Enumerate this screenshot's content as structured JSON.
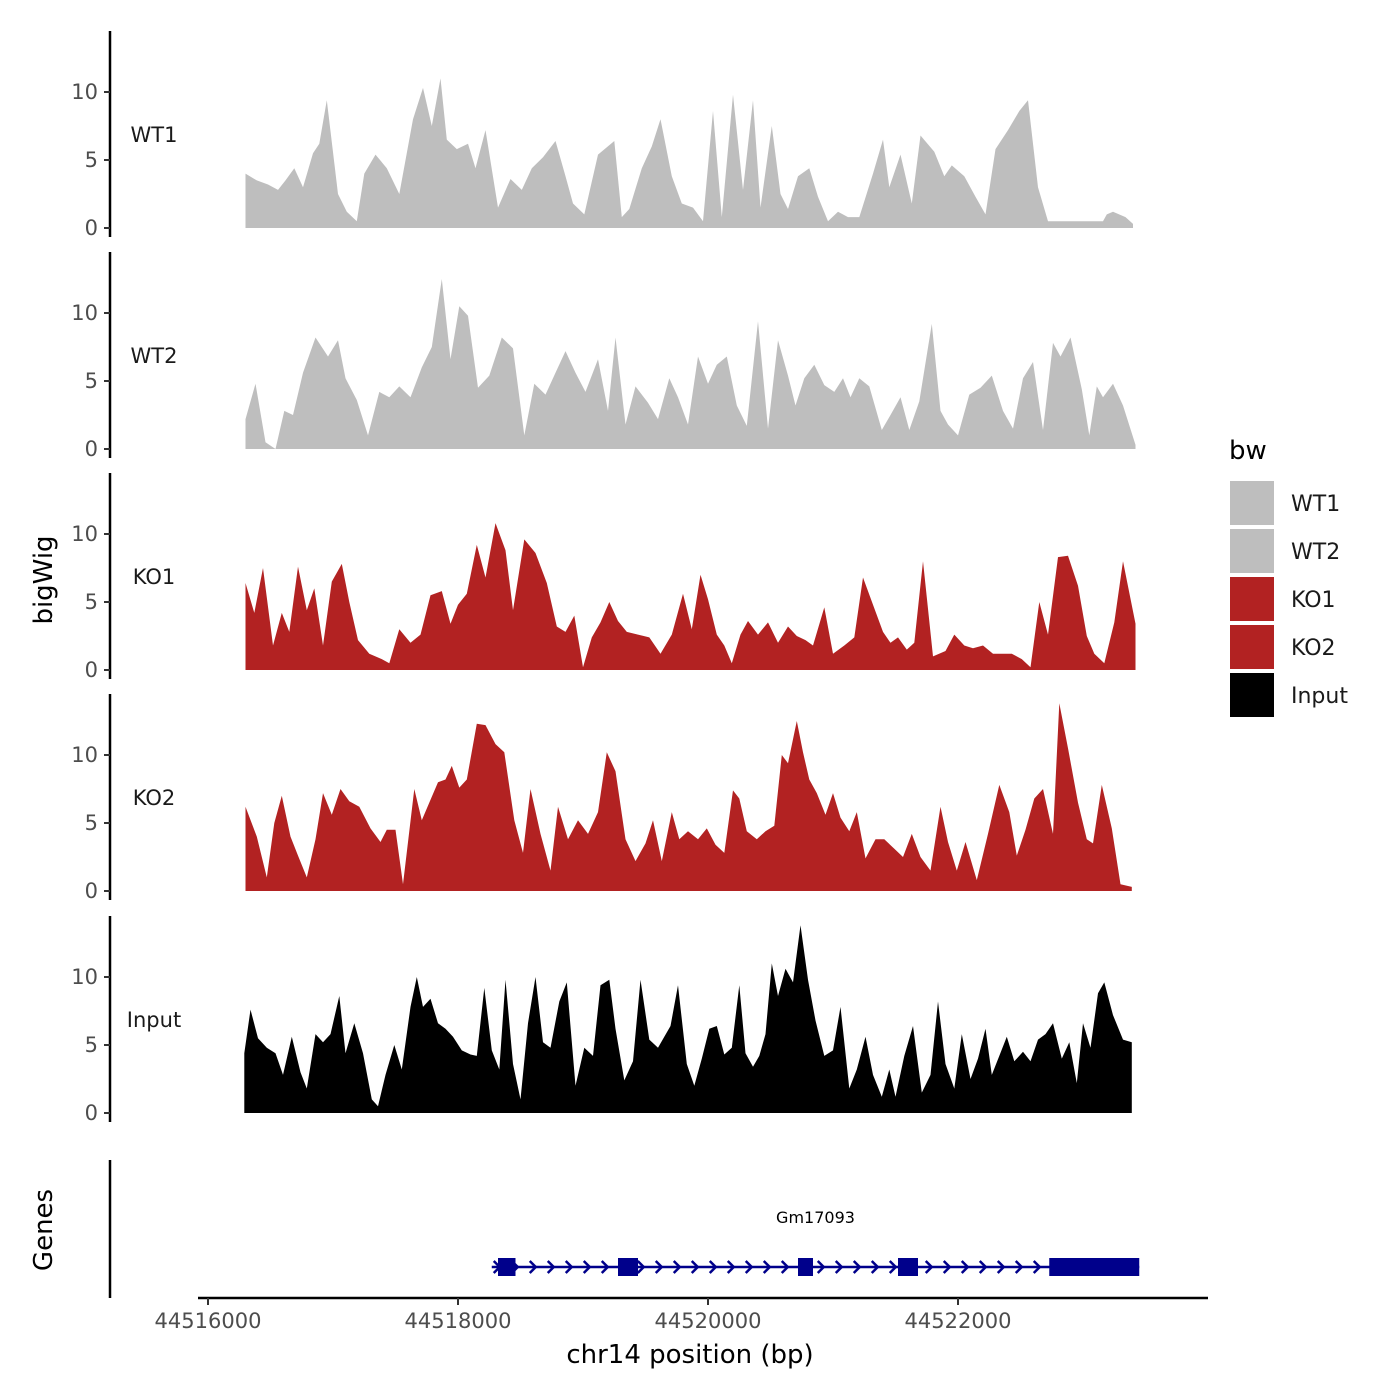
{
  "chart_data": {
    "type": "area",
    "chromosome": "chr14",
    "xlabel": "chr14 position (bp)",
    "ylabel": "bigWig",
    "genes_label": "Genes",
    "xlim": [
      44515920,
      44524000
    ],
    "x_ticks": [
      44516000,
      44518000,
      44520000,
      44522000
    ],
    "x_tick_labels": [
      "44516000",
      "44518000",
      "44520000",
      "44522000"
    ],
    "ylim": [
      0,
      14
    ],
    "y_ticks": [
      0,
      5,
      10
    ],
    "y_tick_labels": [
      "0",
      "5",
      "10"
    ],
    "legend": {
      "title": "bw",
      "entries": [
        {
          "label": "WT1",
          "color": "#bebebe"
        },
        {
          "label": "WT2",
          "color": "#bebebe"
        },
        {
          "label": "KO1",
          "color": "#b22222"
        },
        {
          "label": "KO2",
          "color": "#b22222"
        },
        {
          "label": "Input",
          "color": "#000000"
        }
      ]
    },
    "series": [
      {
        "name": "WT1",
        "color": "#bebebe",
        "x": [
          44516300,
          44516390,
          44516480,
          44516560,
          44516620,
          44516690,
          44516760,
          44516840,
          44516890,
          44516950,
          44517040,
          44517110,
          44517190,
          44517250,
          44517340,
          44517430,
          44517530,
          44517640,
          44517720,
          44517790,
          44517860,
          44517910,
          44517990,
          44518080,
          44518140,
          44518220,
          44518320,
          44518420,
          44518510,
          44518590,
          44518680,
          44518780,
          44518860,
          44518920,
          44519010,
          44519120,
          44519250,
          44519310,
          44519370,
          44519470,
          44519550,
          44519620,
          44519710,
          44519790,
          44519880,
          44519960,
          44520040,
          44520110,
          44520200,
          44520280,
          44520360,
          44520420,
          44520510,
          44520580,
          44520640,
          44520720,
          44520810,
          44520880,
          44520960,
          44521040,
          44521120,
          44521210,
          44521320,
          44521400,
          44521450,
          44521540,
          44521630,
          44521700,
          44521810,
          44521890,
          44521950,
          44522050,
          44522140,
          44522220,
          44522300,
          44522400,
          44522490,
          44522560,
          44522640,
          44522720,
          44522810,
          44522890,
          44522970,
          44523050,
          44523110,
          44523160,
          44523190,
          44523240,
          44523340,
          44523400
        ],
        "values": [
          4,
          3.5,
          3.2,
          2.8,
          3.5,
          4.4,
          3,
          5.5,
          6.2,
          9.4,
          2.5,
          1.2,
          0.5,
          4,
          5.4,
          4.4,
          2.5,
          8,
          10.3,
          7.5,
          11,
          6.5,
          5.8,
          6.2,
          4.4,
          7.2,
          1.5,
          3.6,
          2.8,
          4.4,
          5.2,
          6.4,
          3.8,
          1.8,
          1,
          5.4,
          6.4,
          0.8,
          1.4,
          4.4,
          6,
          8,
          3.8,
          1.8,
          1.5,
          0.5,
          8.6,
          0.8,
          9.8,
          2.8,
          9.4,
          1.5,
          7.5,
          2.5,
          1.4,
          3.8,
          4.4,
          2.3,
          0.5,
          1.2,
          0.8,
          0.8,
          4,
          6.5,
          3,
          5.4,
          1.8,
          6.8,
          5.6,
          3.8,
          4.6,
          3.8,
          2.3,
          1,
          5.8,
          7.2,
          8.6,
          9.4,
          3,
          0.5,
          0.5,
          0.5,
          0.5,
          0.5,
          0.5,
          0.5,
          1,
          1.2,
          0.8,
          0.3
        ]
      },
      {
        "name": "WT2",
        "color": "#bebebe",
        "x": [
          44516300,
          44516380,
          44516460,
          44516540,
          44516610,
          44516680,
          44516760,
          44516860,
          44516960,
          44517040,
          44517100,
          44517190,
          44517280,
          44517370,
          44517450,
          44517530,
          44517620,
          44517710,
          44517790,
          44517870,
          44517940,
          44518010,
          44518080,
          44518160,
          44518250,
          44518350,
          44518440,
          44518530,
          44518610,
          44518700,
          44518780,
          44518860,
          44518940,
          44519020,
          44519120,
          44519200,
          44519260,
          44519340,
          44519420,
          44519520,
          44519600,
          44519690,
          44519760,
          44519840,
          44519920,
          44520000,
          44520070,
          44520150,
          44520230,
          44520310,
          44520400,
          44520480,
          44520560,
          44520640,
          44520700,
          44520770,
          44520850,
          44520930,
          44521010,
          44521080,
          44521140,
          44521210,
          44521290,
          44521390,
          44521460,
          44521540,
          44521610,
          44521690,
          44521790,
          44521860,
          44521920,
          44522000,
          44522090,
          44522180,
          44522270,
          44522360,
          44522440,
          44522520,
          44522600,
          44522680,
          44522760,
          44522820,
          44522900,
          44522990,
          44523050,
          44523110,
          44523160,
          44523240,
          44523320,
          44523420
        ],
        "values": [
          2.2,
          4.8,
          0.5,
          0,
          2.8,
          2.5,
          5.6,
          8.2,
          6.8,
          8,
          5.2,
          3.6,
          1,
          4.2,
          3.8,
          4.6,
          3.8,
          6,
          7.5,
          12.5,
          6.6,
          10.5,
          9.8,
          4.5,
          5.4,
          8.2,
          7.4,
          1,
          4.8,
          4,
          5.6,
          7.2,
          5.6,
          4.2,
          6.6,
          2.8,
          8.2,
          1.8,
          4.6,
          3.4,
          2.2,
          5.2,
          3.8,
          1.8,
          6.8,
          4.8,
          6.2,
          6.8,
          3.2,
          1.7,
          9.4,
          1.5,
          8,
          5.4,
          3.2,
          5.2,
          6.2,
          4.7,
          4.2,
          5.2,
          3.8,
          5.2,
          4.6,
          1.4,
          2.5,
          3.8,
          1.4,
          3.5,
          9.2,
          2.8,
          1.8,
          1,
          4,
          4.5,
          5.4,
          2.8,
          1.5,
          5.2,
          6.4,
          1.4,
          7.8,
          6.8,
          8.2,
          4.4,
          1,
          4.6,
          3.8,
          4.8,
          3.2,
          0.3
        ]
      },
      {
        "name": "KO1",
        "color": "#b22222",
        "x": [
          44516300,
          44516370,
          44516440,
          44516520,
          44516590,
          44516650,
          44516720,
          44516790,
          44516850,
          44516920,
          44516990,
          44517070,
          44517130,
          44517200,
          44517290,
          44517390,
          44517450,
          44517530,
          44517620,
          44517700,
          44517780,
          44517870,
          44517940,
          44518000,
          44518070,
          44518150,
          44518220,
          44518300,
          44518380,
          44518440,
          44518530,
          44518620,
          44518710,
          44518790,
          44518860,
          44518930,
          44519000,
          44519070,
          44519140,
          44519210,
          44519280,
          44519350,
          44519440,
          44519530,
          44519620,
          44519710,
          44519800,
          44519870,
          44519940,
          44520000,
          44520070,
          44520130,
          44520190,
          44520260,
          44520320,
          44520400,
          44520480,
          44520560,
          44520640,
          44520710,
          44520780,
          44520840,
          44520930,
          44521000,
          44521090,
          44521170,
          44521240,
          44521320,
          44521400,
          44521460,
          44521520,
          44521590,
          44521650,
          44521720,
          44521800,
          44521900,
          44521970,
          44522050,
          44522120,
          44522200,
          44522280,
          44522360,
          44522430,
          44522510,
          44522580,
          44522650,
          44522720,
          44522800,
          44522880,
          44522960,
          44523030,
          44523090,
          44523170,
          44523250,
          44523320,
          44523420
        ],
        "values": [
          6.4,
          4.2,
          7.5,
          1.8,
          4.2,
          2.8,
          7.6,
          4.4,
          6,
          1.8,
          6.5,
          7.8,
          5,
          2.2,
          1.2,
          0.8,
          0.5,
          3,
          2,
          2.6,
          5.5,
          5.8,
          3.4,
          4.8,
          5.6,
          9.2,
          6.8,
          10.8,
          8.8,
          4.4,
          9.6,
          8.6,
          6.4,
          3.2,
          2.8,
          4,
          0.2,
          2.4,
          3.5,
          5,
          3.6,
          2.8,
          2.6,
          2.4,
          1.2,
          2.6,
          5.6,
          3,
          7,
          5.2,
          2.6,
          1.8,
          0.5,
          2.6,
          3.6,
          2.6,
          3.5,
          2,
          3.2,
          2.5,
          2.2,
          1.8,
          4.6,
          1.2,
          1.8,
          2.4,
          6.8,
          4.8,
          2.8,
          2,
          2.4,
          1.5,
          2,
          8,
          1,
          1.4,
          2.6,
          1.8,
          1.6,
          1.8,
          1.2,
          1.2,
          1.2,
          0.8,
          0.2,
          5,
          2.6,
          8.3,
          8.4,
          6.2,
          2.5,
          1.2,
          0.5,
          3.5,
          8,
          3.4
        ]
      },
      {
        "name": "KO2",
        "color": "#b22222",
        "x": [
          44516300,
          44516390,
          44516470,
          44516530,
          44516590,
          44516660,
          44516720,
          44516790,
          44516860,
          44516920,
          44516990,
          44517060,
          44517130,
          44517210,
          44517300,
          44517380,
          44517430,
          44517500,
          44517560,
          44517650,
          44517710,
          44517770,
          44517840,
          44517900,
          44517950,
          44518010,
          44518070,
          44518150,
          44518220,
          44518300,
          44518370,
          44518450,
          44518520,
          44518580,
          44518660,
          44518740,
          44518800,
          44518880,
          44518960,
          44519040,
          44519120,
          44519190,
          44519260,
          44519340,
          44519420,
          44519500,
          44519560,
          44519630,
          44519710,
          44519770,
          44519840,
          44519920,
          44519990,
          44520060,
          44520130,
          44520200,
          44520250,
          44520310,
          44520390,
          44520460,
          44520530,
          44520590,
          44520640,
          44520710,
          44520760,
          44520810,
          44520870,
          44520940,
          44521000,
          44521060,
          44521130,
          44521190,
          44521260,
          44521340,
          44521410,
          44521480,
          44521560,
          44521630,
          44521700,
          44521780,
          44521860,
          44521920,
          44521990,
          44522060,
          44522150,
          44522240,
          44522330,
          44522410,
          44522470,
          44522540,
          44522610,
          44522680,
          44522760,
          44522810,
          44522880,
          44522960,
          44523030,
          44523080,
          44523150,
          44523230,
          44523300,
          44523390
        ],
        "values": [
          6.2,
          4,
          1,
          5,
          7,
          4,
          2.6,
          1,
          3.8,
          7.2,
          5.6,
          7.5,
          6.6,
          6.2,
          4.6,
          3.6,
          4.5,
          4.5,
          0.5,
          7.5,
          5.2,
          6.5,
          8,
          8.2,
          9.2,
          7.6,
          8.2,
          12.3,
          12.2,
          10.8,
          10.2,
          5.2,
          2.8,
          7.5,
          4.2,
          1.5,
          6.2,
          3.8,
          5.2,
          4.2,
          5.8,
          10.2,
          8.8,
          3.8,
          2.2,
          3.5,
          5.2,
          2.2,
          5.8,
          3.8,
          4.4,
          3.8,
          4.6,
          3.4,
          2.8,
          7.4,
          6.8,
          4.4,
          3.8,
          4.4,
          4.8,
          10,
          9.4,
          12.5,
          10.2,
          8.2,
          7.2,
          5.6,
          7.2,
          5.4,
          4.4,
          5.8,
          2.4,
          3.8,
          3.8,
          3.2,
          2.5,
          4.2,
          2.5,
          1.5,
          6.2,
          3.6,
          1.5,
          3.6,
          0.8,
          4.2,
          7.8,
          5.8,
          2.6,
          4.5,
          6.8,
          7.5,
          4.2,
          13.8,
          10.5,
          6.5,
          3.8,
          3.5,
          7.8,
          4.6,
          0.5,
          0.3
        ]
      },
      {
        "name": "Input",
        "color": "#000000",
        "x": [
          44516290,
          44516340,
          44516400,
          44516470,
          44516540,
          44516600,
          44516670,
          44516740,
          44516790,
          44516860,
          44516920,
          44516980,
          44517050,
          44517100,
          44517170,
          44517240,
          44517310,
          44517360,
          44517420,
          44517490,
          44517550,
          44517620,
          44517670,
          44517720,
          44517780,
          44517840,
          44517900,
          44517960,
          44518030,
          44518100,
          44518150,
          44518210,
          44518270,
          44518330,
          44518380,
          44518440,
          44518500,
          44518560,
          44518620,
          44518680,
          44518740,
          44518810,
          44518870,
          44518940,
          44519010,
          44519080,
          44519140,
          44519210,
          44519260,
          44519330,
          44519400,
          44519460,
          44519530,
          44519600,
          44519650,
          44519700,
          44519760,
          44519830,
          44519890,
          44519950,
          44520010,
          44520070,
          44520130,
          44520190,
          44520250,
          44520300,
          44520360,
          44520410,
          44520460,
          44520510,
          44520560,
          44520620,
          44520680,
          44520740,
          44520800,
          44520860,
          44520930,
          44521000,
          44521060,
          44521130,
          44521190,
          44521260,
          44521320,
          44521390,
          44521450,
          44521500,
          44521570,
          44521640,
          44521710,
          44521780,
          44521840,
          44521900,
          44521970,
          44522030,
          44522100,
          44522160,
          44522220,
          44522270,
          44522330,
          44522390,
          44522450,
          44522520,
          44522580,
          44522640,
          44522700,
          44522760,
          44522830,
          44522890,
          44522950,
          44523000,
          44523060,
          44523120,
          44523170,
          44523240,
          44523320,
          44523390
        ],
        "values": [
          4.4,
          7.6,
          5.5,
          4.8,
          4.4,
          2.8,
          5.6,
          3,
          1.8,
          5.8,
          5.2,
          5.8,
          8.6,
          4.4,
          6.6,
          4.4,
          1,
          0.5,
          2.8,
          5,
          3.2,
          7.8,
          10,
          7.8,
          8.4,
          6.6,
          6.2,
          5.6,
          4.6,
          4.3,
          4.2,
          9.2,
          4.6,
          3.2,
          9.8,
          3.6,
          1,
          6.6,
          10,
          5.2,
          4.8,
          8.2,
          9.6,
          2,
          4.8,
          4.2,
          9.4,
          9.8,
          6.2,
          2.4,
          3.8,
          9.8,
          5.4,
          4.8,
          5.6,
          6.4,
          9.4,
          3.6,
          2,
          4,
          6.2,
          6.4,
          4.3,
          4.8,
          9.4,
          4.4,
          3.4,
          4.2,
          5.8,
          11,
          8.6,
          10.6,
          9.6,
          13.8,
          9.8,
          6.8,
          4.2,
          4.6,
          7.8,
          1.8,
          3.2,
          5.6,
          2.8,
          1.2,
          3.2,
          1.2,
          4.2,
          6.4,
          1.5,
          2.8,
          8.2,
          3.6,
          1.8,
          5.8,
          2.5,
          4,
          6.2,
          2.8,
          4.2,
          5.6,
          3.8,
          4.5,
          3.8,
          5.4,
          5.8,
          6.6,
          4,
          5.2,
          2.2,
          6.6,
          4.8,
          8.8,
          9.6,
          7.2,
          5.4,
          5.2
        ]
      }
    ],
    "gene": {
      "name": "Gm17093",
      "strand": "+",
      "start": 44518270,
      "end": 44523450,
      "exons": [
        [
          44518320,
          44518460
        ],
        [
          44519280,
          44519440
        ],
        [
          44520720,
          44520840
        ],
        [
          44521520,
          44521680
        ],
        [
          44522730,
          44523450
        ]
      ]
    }
  }
}
